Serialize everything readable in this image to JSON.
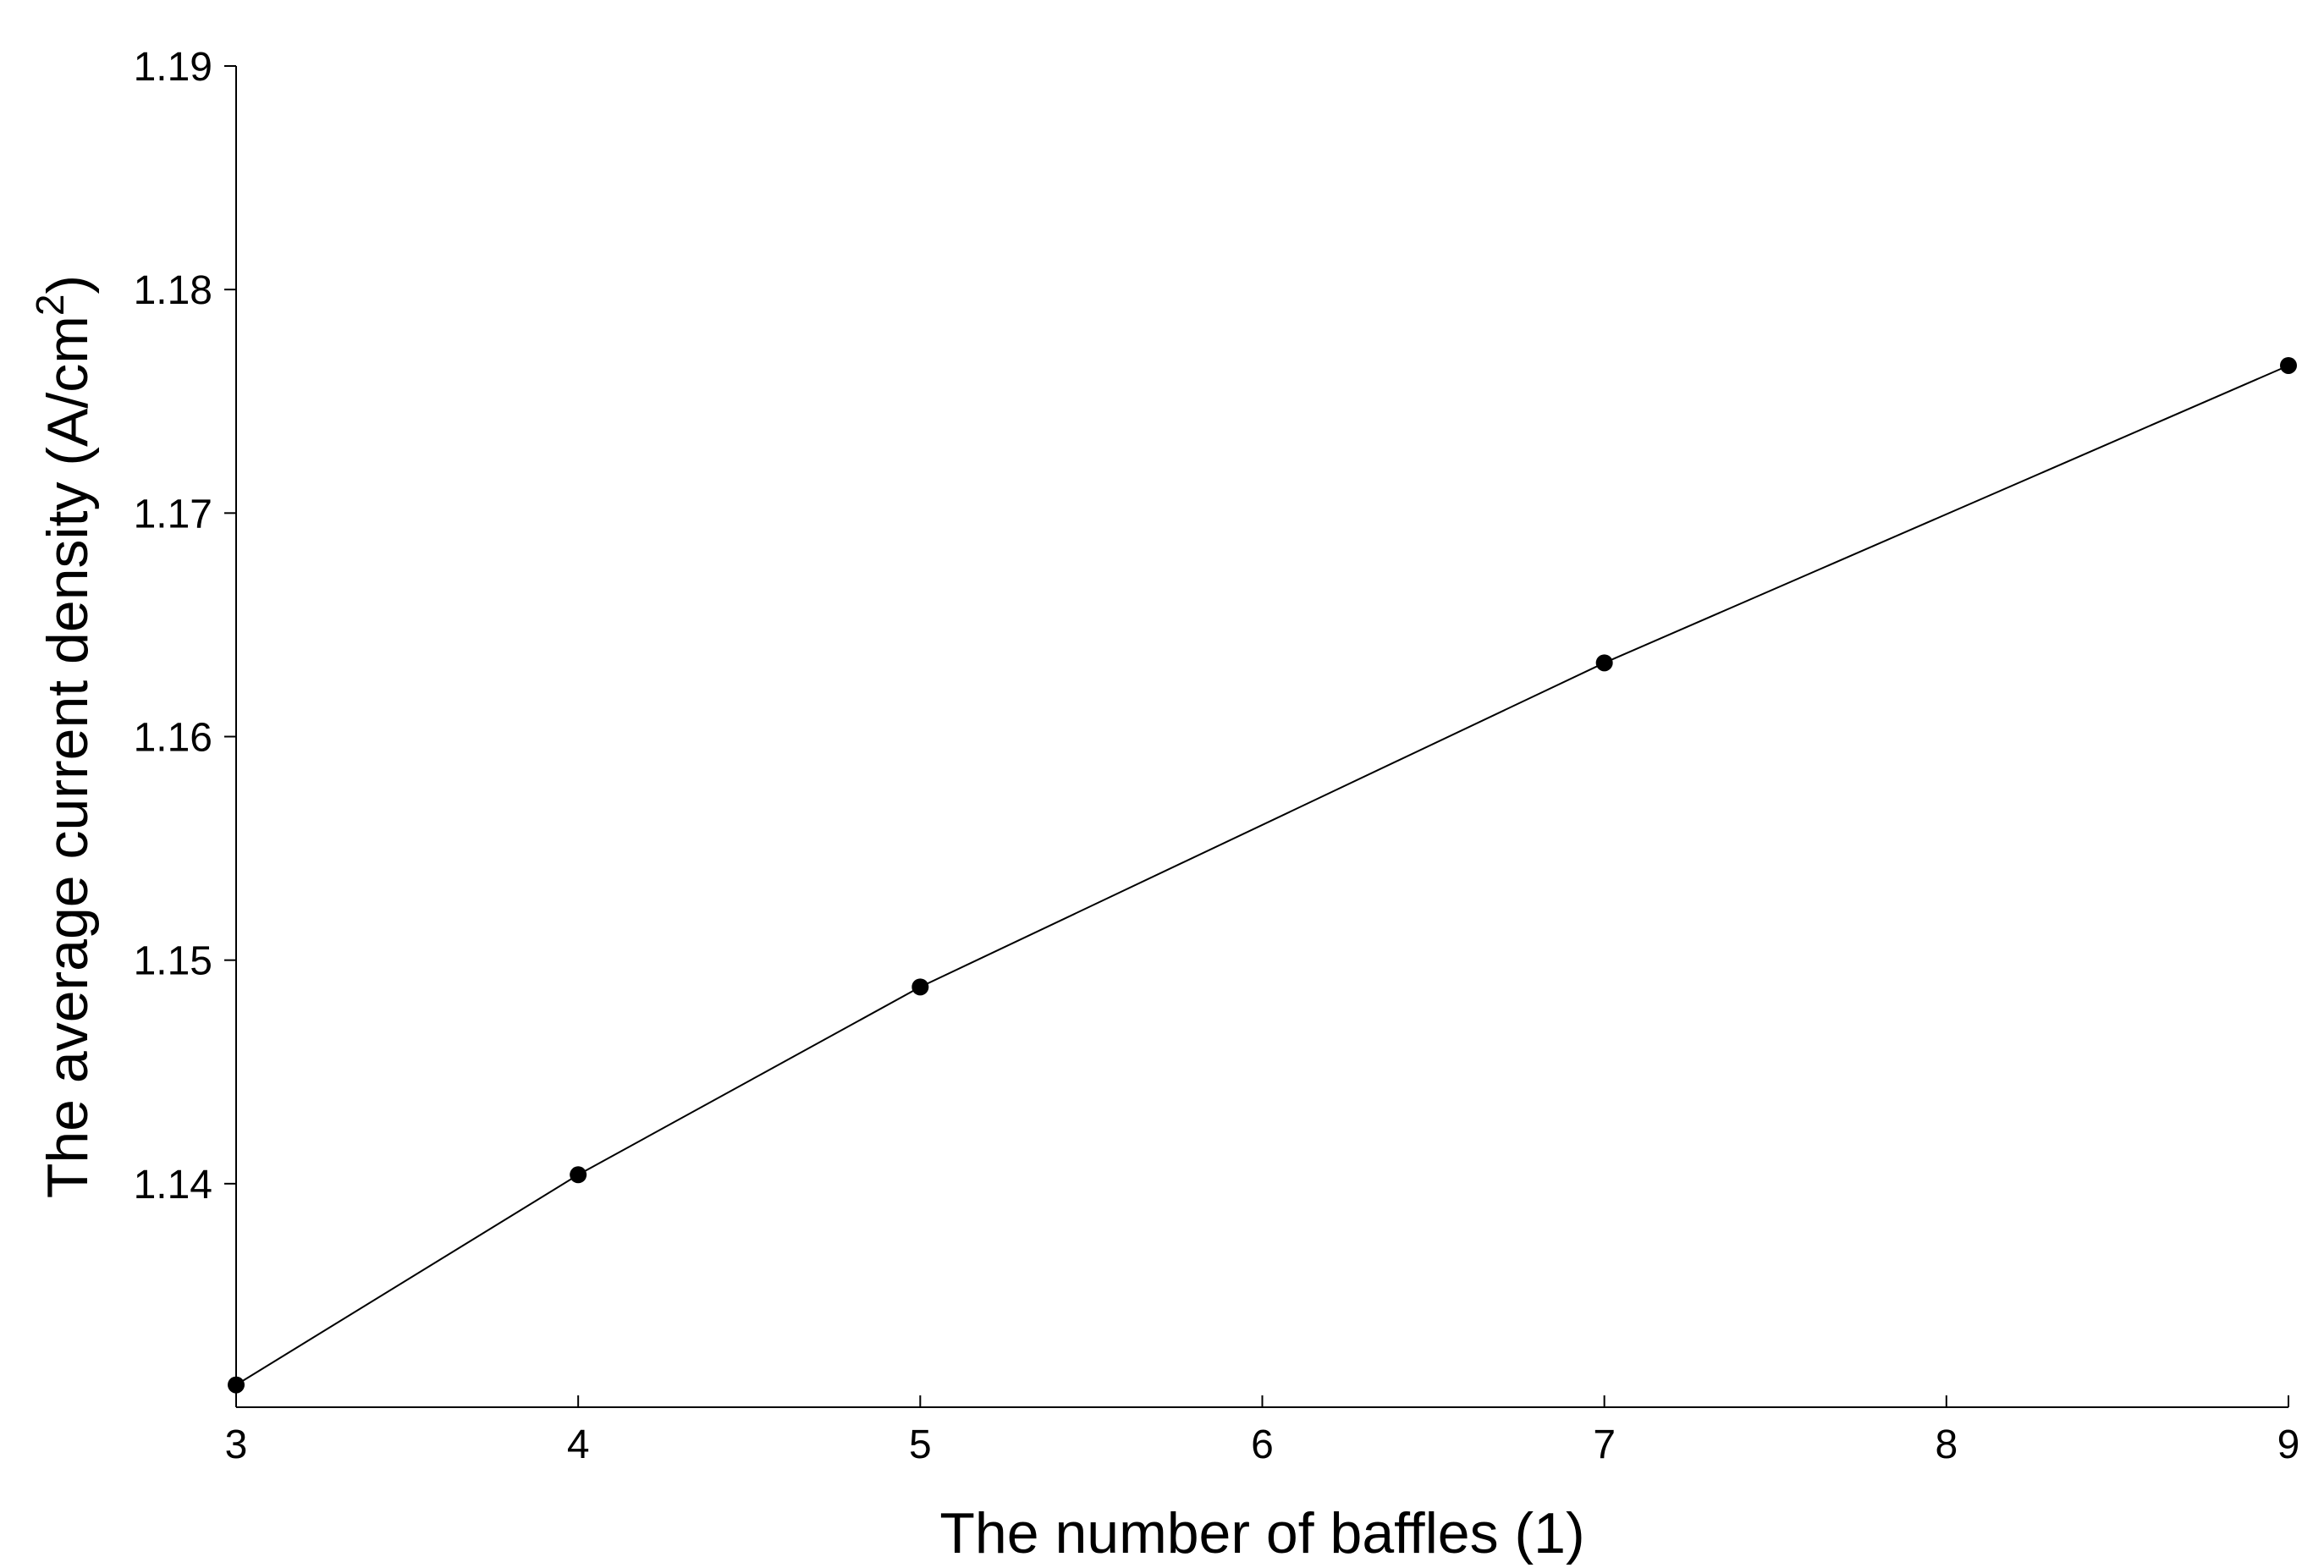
{
  "chart_data": {
    "type": "line",
    "title": "",
    "xlabel": "The number of baffles (1)",
    "ylabel": {
      "main": "The average current density (A/cm",
      "superscript": "2",
      "suffix": ")"
    },
    "x": [
      3,
      4,
      5,
      7,
      9
    ],
    "series": [
      {
        "values": [
          1.131,
          1.1404,
          1.1488,
          1.1633,
          1.1766
        ],
        "color": "#000000",
        "marker": "filled-circle"
      }
    ],
    "xlim": [
      3,
      9
    ],
    "ylim": [
      1.13,
      1.19
    ],
    "xticks": [
      3,
      4,
      5,
      6,
      7,
      8,
      9
    ],
    "xtick_labels": [
      "3",
      "4",
      "5",
      "6",
      "7",
      "8",
      "9"
    ],
    "yticks": [
      1.14,
      1.15,
      1.16,
      1.17,
      1.18,
      1.19
    ],
    "ytick_labels": [
      "1.14",
      "1.15",
      "1.16",
      "1.17",
      "1.18",
      "1.19"
    ],
    "grid": false,
    "legend": "none",
    "box": "left-bottom axes only"
  }
}
